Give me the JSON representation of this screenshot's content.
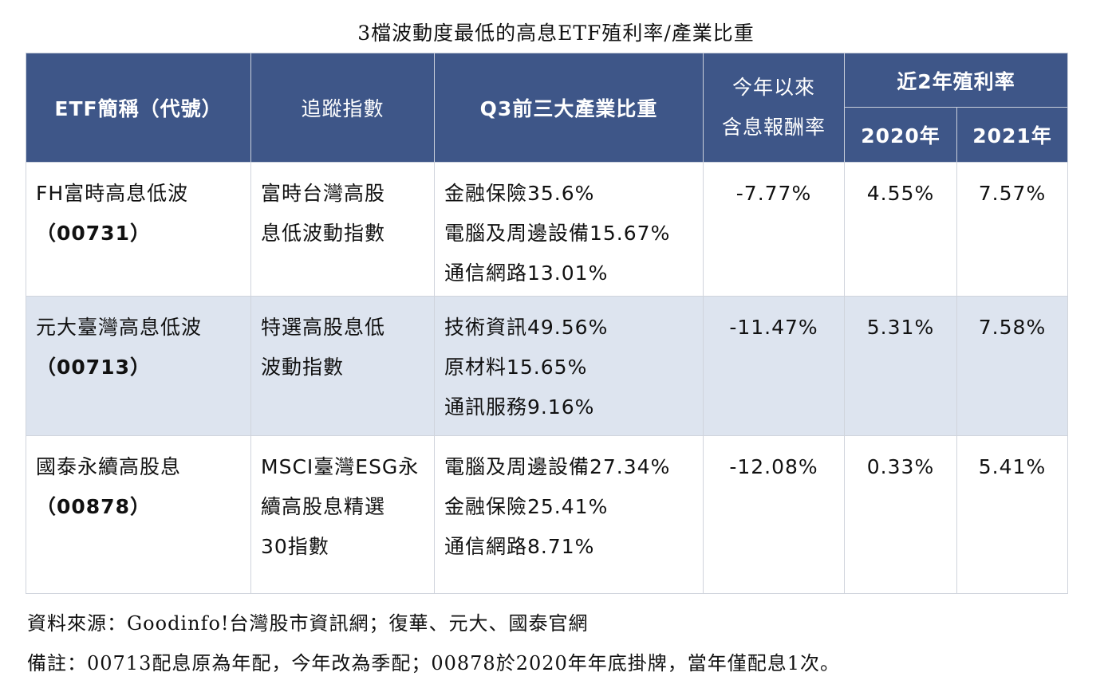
{
  "title": "3檔波動度最低的高息ETF殖利率/產業比重",
  "headers": {
    "etf_name": "ETF簡稱（代號）",
    "index": "追蹤指數",
    "industry": "Q3前三大產業比重",
    "ytd_line1": "今年以來",
    "ytd_line2": "含息報酬率",
    "yield_group": "近2年殖利率",
    "y2020": "2020年",
    "y2021": "2021年"
  },
  "rows": [
    {
      "name": "FH富時高息低波",
      "code": "（00731）",
      "index_line1": "富時台灣高股",
      "index_line2": "息低波動指數",
      "index_line3": "",
      "industries": [
        "金融保險35.6%",
        "電腦及周邊設備15.67%",
        "通信網路13.01%"
      ],
      "ytd": "-7.77%",
      "y2020": "4.55%",
      "y2021": "7.57%"
    },
    {
      "name": "元大臺灣高息低波",
      "code": "（00713）",
      "index_line1": "特選高股息低",
      "index_line2": "波動指數",
      "index_line3": "",
      "industries": [
        "技術資訊49.56%",
        "原材料15.65%",
        "通訊服務9.16%"
      ],
      "ytd": "-11.47%",
      "y2020": "5.31%",
      "y2021": "7.58%"
    },
    {
      "name": "國泰永續高股息",
      "code": "（00878）",
      "index_line1": "MSCI臺灣ESG永",
      "index_line2": "續高股息精選",
      "index_line3": "30指數",
      "industries": [
        "電腦及周邊設備27.34%",
        "金融保險25.41%",
        "通信網路8.71%"
      ],
      "ytd": "-12.08%",
      "y2020": "0.33%",
      "y2021": "5.41%"
    }
  ],
  "notes": {
    "source": "資料來源：Goodinfo!台灣股市資訊網；復華、元大、國泰官網",
    "memo": "備註：00713配息原為年配，今年改為季配；00878於2020年年底掛牌，當年僅配息1次。"
  }
}
